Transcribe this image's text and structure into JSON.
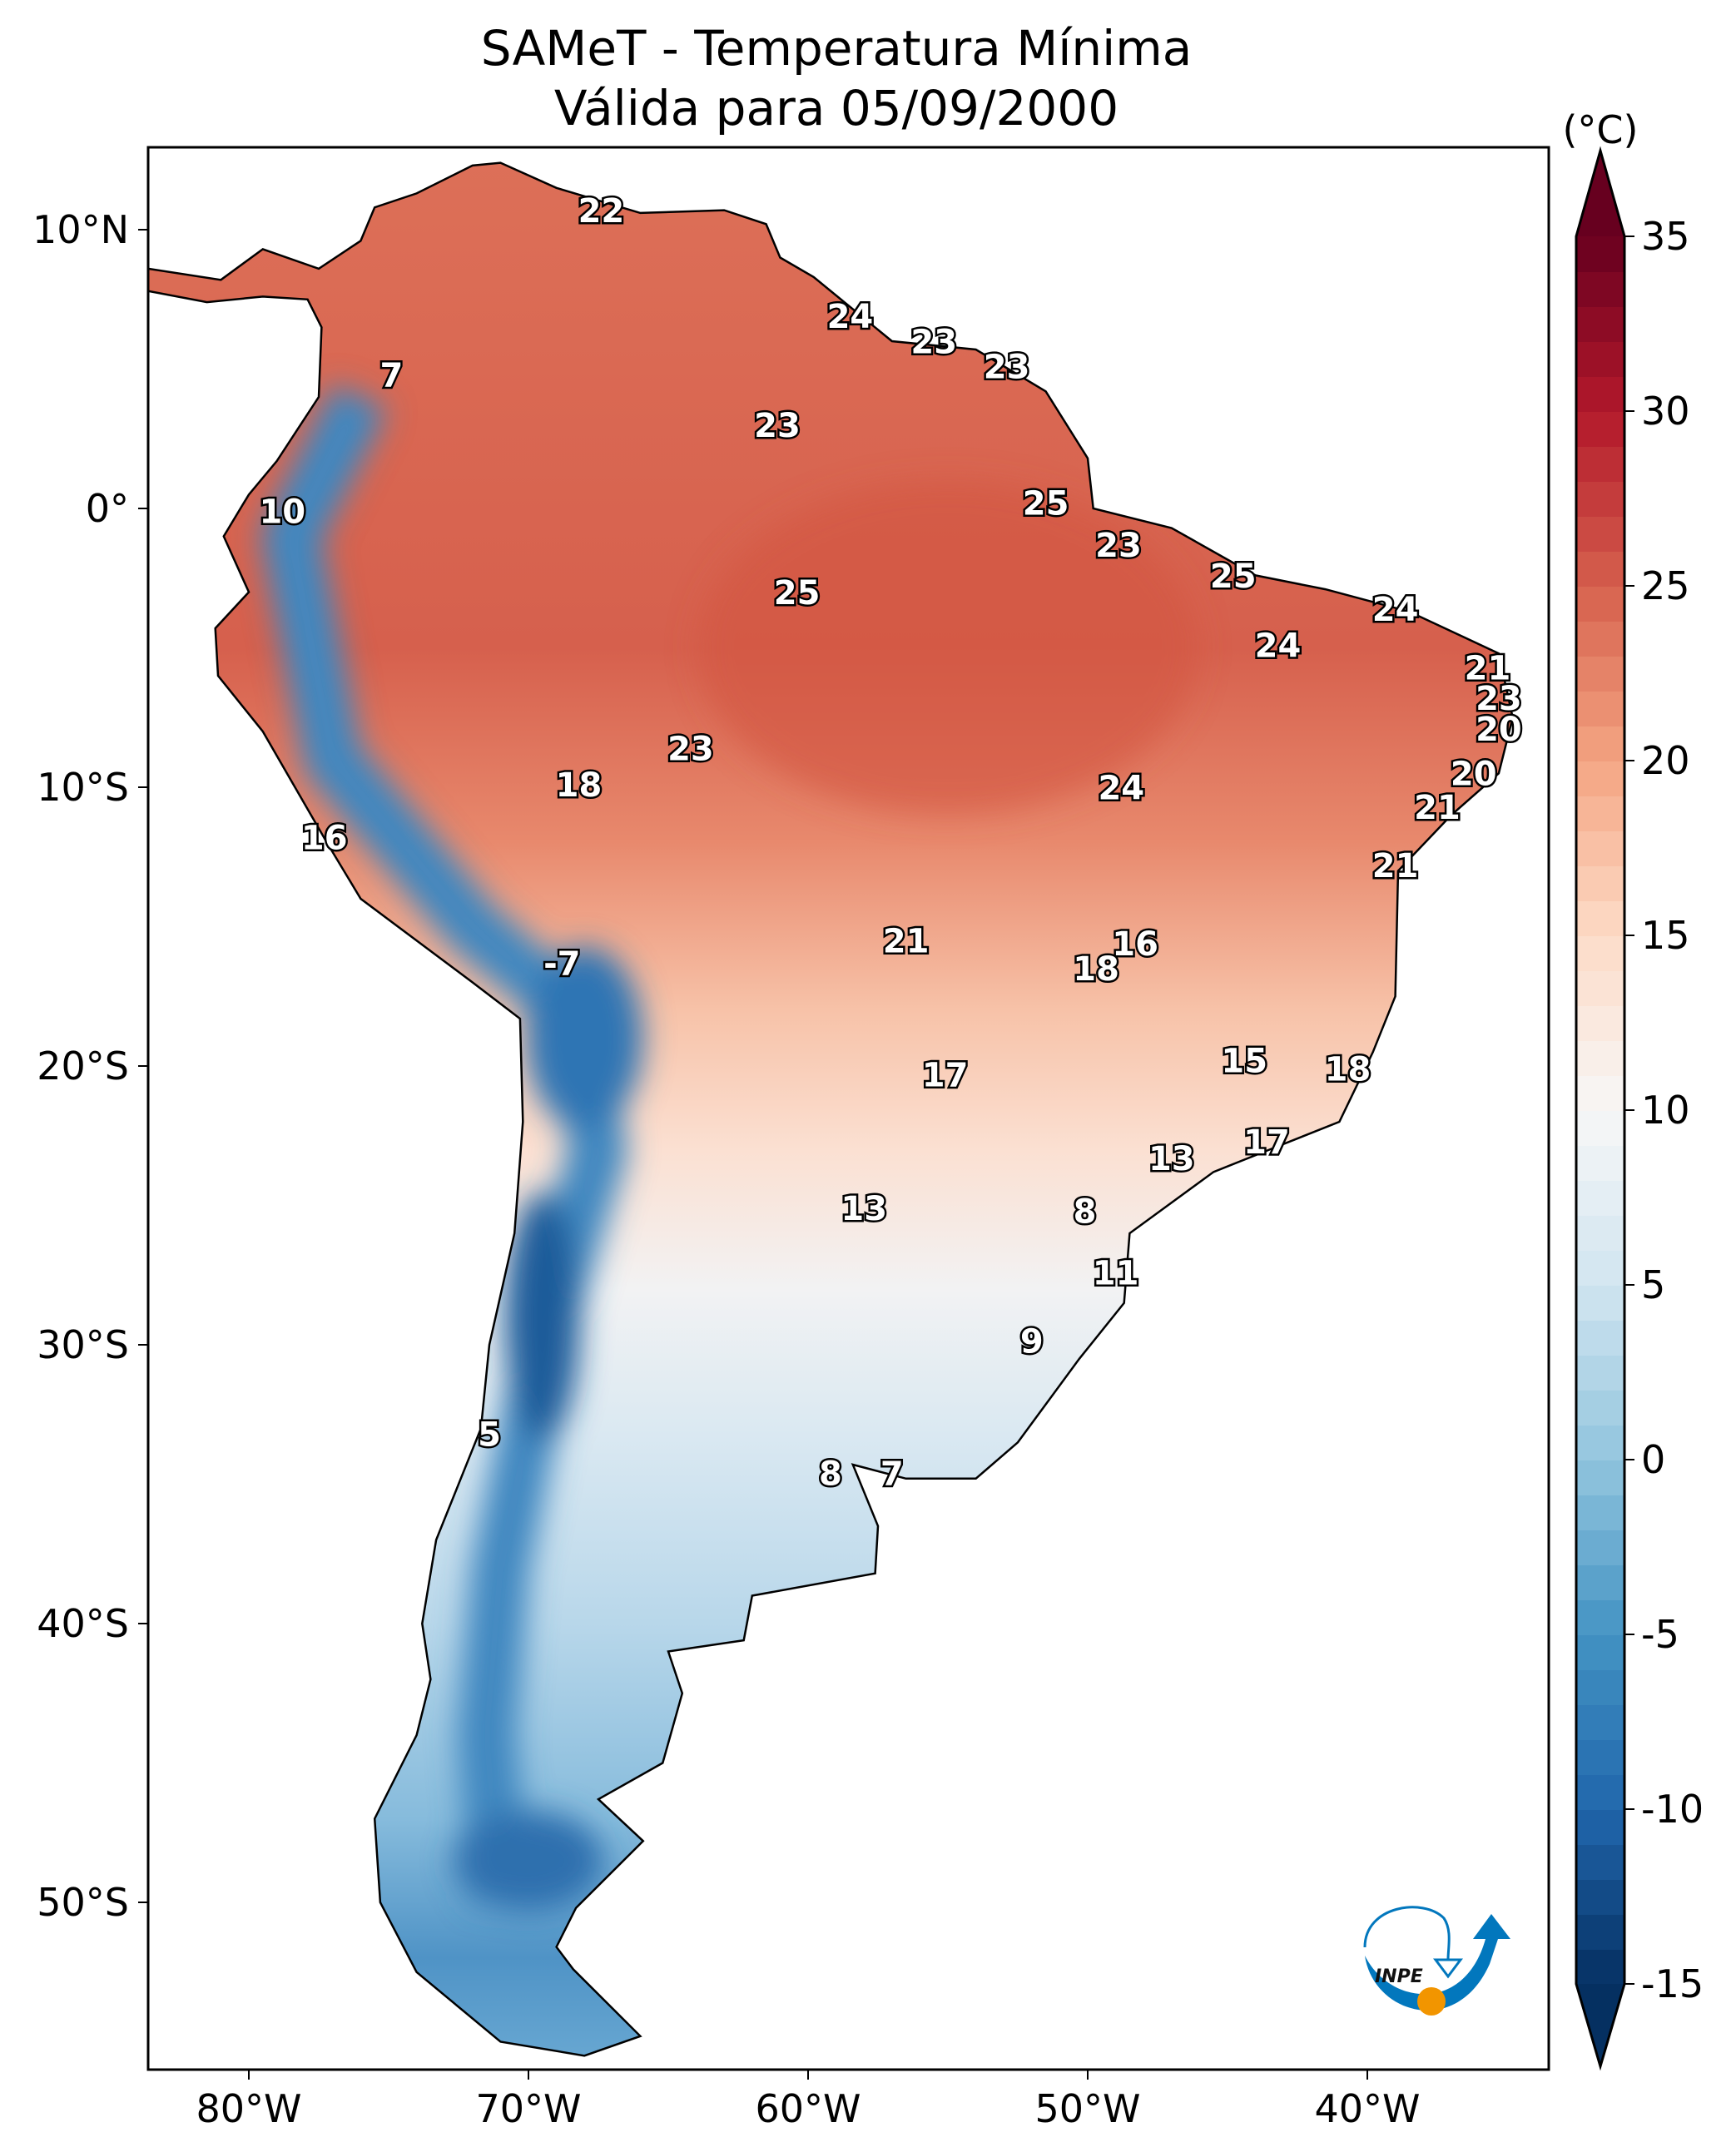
{
  "title": {
    "line1": "SAMeT - Temperatura Mínima",
    "line2": "Válida para 05/09/2000"
  },
  "colorbar": {
    "unit_label": "(°C)",
    "ticks": [
      35,
      30,
      25,
      20,
      15,
      10,
      5,
      0,
      -5,
      -10,
      -15
    ],
    "range": [
      -15,
      35
    ],
    "extend": "both",
    "colormap": "RdBu_r",
    "colors": {
      "-15": "#053061",
      "-10": "#2166ac",
      "-5": "#4393c3",
      "0": "#92c5de",
      "5": "#d1e5f0",
      "10": "#f7f7f7",
      "15": "#fddbc7",
      "20": "#f4a582",
      "25": "#d6604d",
      "30": "#b2182b",
      "35": "#67001f"
    }
  },
  "chart_data": {
    "type": "heatmap",
    "title": "SAMeT - Temperatura Mínima / Válida para 05/09/2000",
    "projection": "PlateCarree",
    "lon_range": [
      -83.6,
      -33.5
    ],
    "lat_range": [
      -56,
      13
    ],
    "x_ticks": [
      {
        "value": -80,
        "label": "80°W"
      },
      {
        "value": -70,
        "label": "70°W"
      },
      {
        "value": -60,
        "label": "60°W"
      },
      {
        "value": -50,
        "label": "50°W"
      },
      {
        "value": -40,
        "label": "40°W"
      }
    ],
    "y_ticks": [
      {
        "value": 10,
        "label": "10°N"
      },
      {
        "value": 0,
        "label": "0°"
      },
      {
        "value": -10,
        "label": "10°S"
      },
      {
        "value": -20,
        "label": "20°S"
      },
      {
        "value": -30,
        "label": "30°S"
      },
      {
        "value": -40,
        "label": "40°S"
      },
      {
        "value": -50,
        "label": "50°S"
      }
    ],
    "grid": false,
    "city_labels": [
      {
        "lon": -67.4,
        "lat": 10.6,
        "value": "22"
      },
      {
        "lon": -58.5,
        "lat": 6.8,
        "value": "24"
      },
      {
        "lon": -55.5,
        "lat": 5.9,
        "value": "23"
      },
      {
        "lon": -52.9,
        "lat": 5.0,
        "value": "23"
      },
      {
        "lon": -74.9,
        "lat": 4.7,
        "value": "7"
      },
      {
        "lon": -61.1,
        "lat": 2.9,
        "value": "23"
      },
      {
        "lon": -78.8,
        "lat": -0.2,
        "value": "10"
      },
      {
        "lon": -51.5,
        "lat": 0.1,
        "value": "25"
      },
      {
        "lon": -48.9,
        "lat": -1.4,
        "value": "23"
      },
      {
        "lon": -60.4,
        "lat": -3.1,
        "value": "25"
      },
      {
        "lon": -44.8,
        "lat": -2.5,
        "value": "25"
      },
      {
        "lon": -39.0,
        "lat": -3.7,
        "value": "24"
      },
      {
        "lon": -43.2,
        "lat": -5.0,
        "value": "24"
      },
      {
        "lon": -35.7,
        "lat": -5.8,
        "value": "21"
      },
      {
        "lon": -35.3,
        "lat": -6.9,
        "value": "23"
      },
      {
        "lon": -35.3,
        "lat": -8.0,
        "value": "20"
      },
      {
        "lon": -64.2,
        "lat": -8.7,
        "value": "23"
      },
      {
        "lon": -36.2,
        "lat": -9.6,
        "value": "20"
      },
      {
        "lon": -68.2,
        "lat": -10.0,
        "value": "18"
      },
      {
        "lon": -48.8,
        "lat": -10.1,
        "value": "24"
      },
      {
        "lon": -37.5,
        "lat": -10.8,
        "value": "21"
      },
      {
        "lon": -77.3,
        "lat": -11.9,
        "value": "16"
      },
      {
        "lon": -39.0,
        "lat": -12.9,
        "value": "21"
      },
      {
        "lon": -56.5,
        "lat": -15.6,
        "value": "21"
      },
      {
        "lon": -48.3,
        "lat": -15.7,
        "value": "16"
      },
      {
        "lon": -68.8,
        "lat": -16.4,
        "value": "-7"
      },
      {
        "lon": -49.7,
        "lat": -16.6,
        "value": "18"
      },
      {
        "lon": -44.4,
        "lat": -19.9,
        "value": "15"
      },
      {
        "lon": -55.1,
        "lat": -20.4,
        "value": "17"
      },
      {
        "lon": -40.7,
        "lat": -20.2,
        "value": "18"
      },
      {
        "lon": -43.6,
        "lat": -22.8,
        "value": "17"
      },
      {
        "lon": -47.0,
        "lat": -23.4,
        "value": "13"
      },
      {
        "lon": -58.0,
        "lat": -25.2,
        "value": "13"
      },
      {
        "lon": -50.1,
        "lat": -25.3,
        "value": "8"
      },
      {
        "lon": -49.0,
        "lat": -27.5,
        "value": "11"
      },
      {
        "lon": -52.0,
        "lat": -29.95,
        "value": "9"
      },
      {
        "lon": -71.4,
        "lat": -33.3,
        "value": "5"
      },
      {
        "lon": -59.2,
        "lat": -34.7,
        "value": "8"
      },
      {
        "lon": -57.0,
        "lat": -34.7,
        "value": "7"
      }
    ]
  },
  "logo": {
    "text": "INPE",
    "colors": {
      "blue": "#0277bd",
      "orange": "#f29500"
    }
  }
}
